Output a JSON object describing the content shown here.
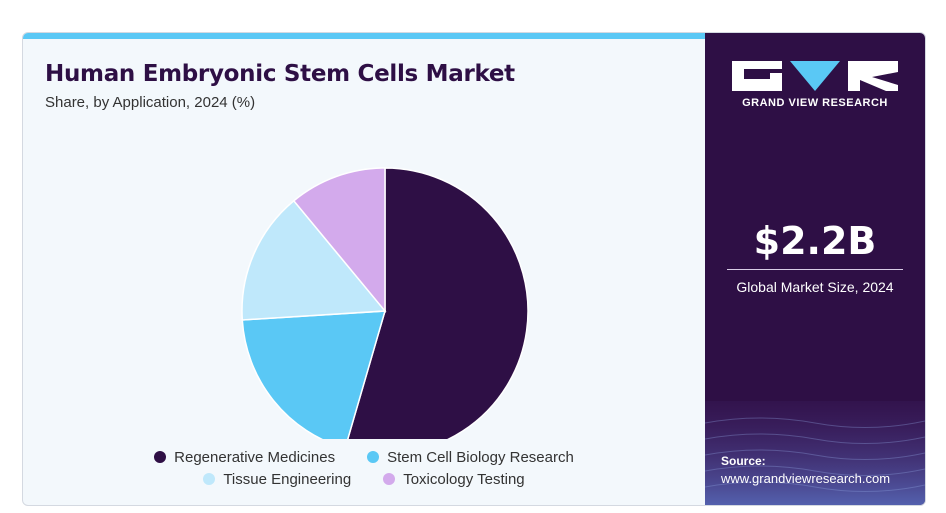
{
  "header": {
    "title": "Human Embryonic Stem Cells Market",
    "subtitle": "Share, by Application, 2024 (%)"
  },
  "chart_data": {
    "type": "pie",
    "categories": [
      "Regenerative Medicines",
      "Stem Cell Biology Research",
      "Tissue Engineering",
      "Toxicology Testing"
    ],
    "values": [
      54.5,
      19.5,
      15.0,
      11.0
    ],
    "colors": [
      "#2e0f45",
      "#5ac8f5",
      "#bfe8fb",
      "#d3aaec"
    ],
    "legend_position": "bottom"
  },
  "sidebar": {
    "brand": "GRAND VIEW RESEARCH",
    "market_size_value": "$2.2B",
    "market_size_label": "Global Market Size, 2024",
    "source_label": "Source:",
    "source_url": "www.grandviewresearch.com"
  }
}
